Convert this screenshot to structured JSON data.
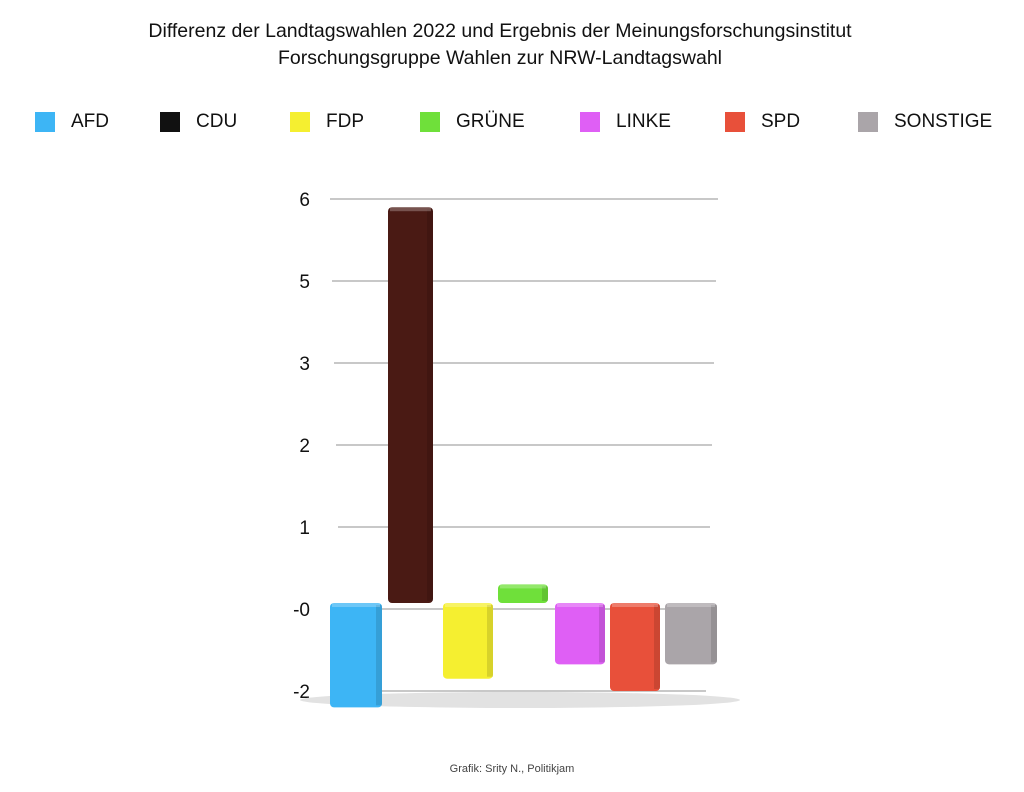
{
  "chart_data": {
    "type": "bar",
    "title_lines": [
      "Differenz der Landtagswahlen 2022 und Ergebnis der Meinungsforschungsinstitut",
      "Forschungsgruppe Wahlen zur NRW-Landtagswahl"
    ],
    "categories": [
      "AFD",
      "CDU",
      "FDP",
      "GRÜNE",
      "LINKE",
      "SPD",
      "SONSTIGE"
    ],
    "values": [
      -2.4,
      5.9,
      -1.7,
      0.3,
      -1.35,
      -2.0,
      -1.35
    ],
    "colors": [
      "#3db5f5",
      "#4a1a14",
      "#f5ef30",
      "#6fe03a",
      "#df5ff5",
      "#e8503a",
      "#aaa5a9"
    ],
    "legend_colors": [
      "#3db5f5",
      "#111111",
      "#f5ef30",
      "#6fe03a",
      "#df5ff5",
      "#e8503a",
      "#aaa5a9"
    ],
    "ytick_labels": [
      "6",
      "5",
      "3",
      "2",
      "1",
      "-0",
      "-2"
    ],
    "ytick_values": [
      6,
      5,
      3,
      2,
      1,
      0,
      -2
    ],
    "ylim": [
      -2,
      6
    ],
    "grid": true,
    "legend_position": "top",
    "xlabel": "",
    "ylabel": ""
  },
  "credit": "Grafik: Srity N., Politikjam"
}
